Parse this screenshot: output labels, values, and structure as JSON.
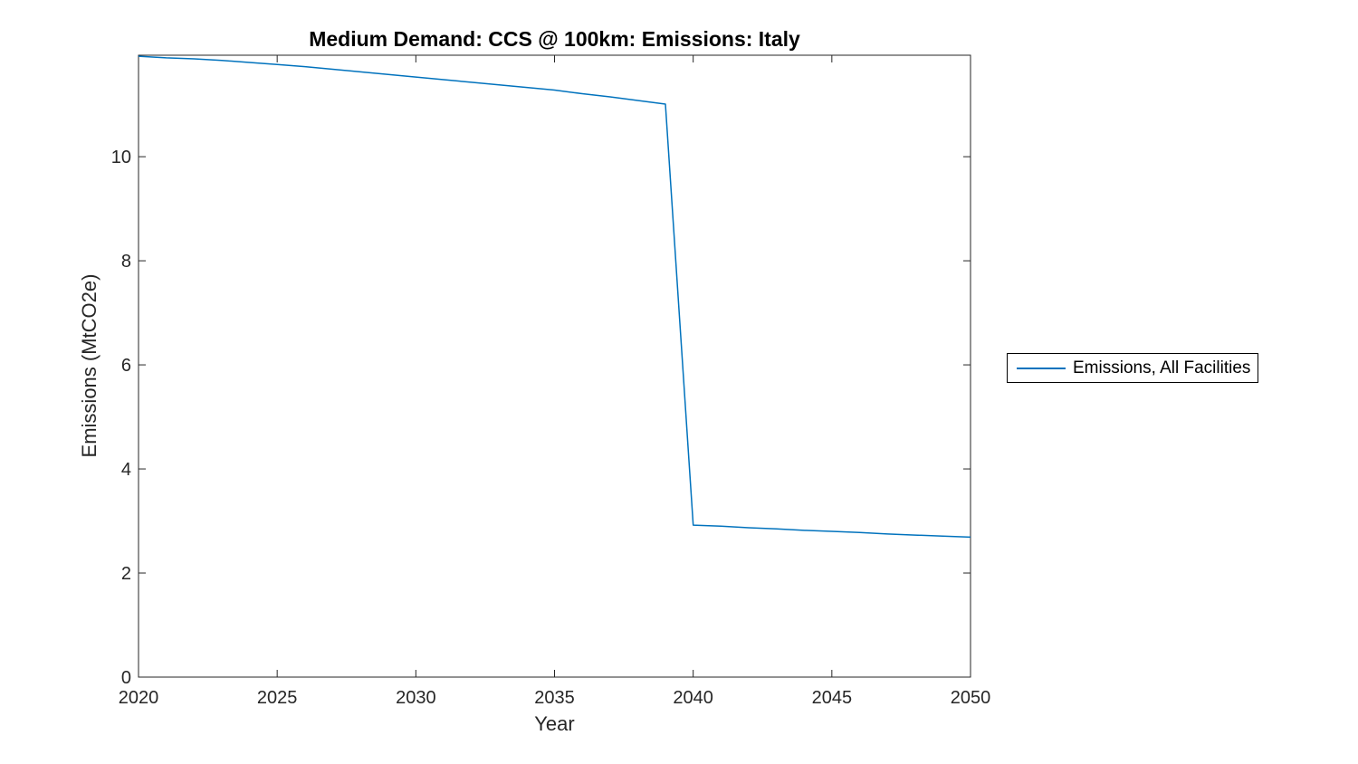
{
  "figure": {
    "background": "#ffffff",
    "axes_color": "#262626"
  },
  "chart_data": {
    "type": "line",
    "title": "Medium Demand: CCS @ 100km: Emissions: Italy",
    "xlabel": "Year",
    "ylabel": "Emissions (MtCO2e)",
    "xlim": [
      2020,
      2050
    ],
    "ylim": [
      0,
      11.95
    ],
    "xticks": [
      2020,
      2025,
      2030,
      2035,
      2040,
      2045,
      2050
    ],
    "yticks": [
      0,
      2,
      4,
      6,
      8,
      10
    ],
    "grid": false,
    "box": true,
    "legend": {
      "position": "right-outside",
      "entries": [
        {
          "label": "Emissions, All Facilities",
          "color": "#0072BD"
        }
      ]
    },
    "series": [
      {
        "name": "Emissions, All Facilities",
        "color": "#0072BD",
        "x": [
          2020,
          2021,
          2022,
          2023,
          2024,
          2025,
          2026,
          2027,
          2028,
          2029,
          2030,
          2031,
          2032,
          2033,
          2034,
          2035,
          2036,
          2037,
          2038,
          2039,
          2040,
          2041,
          2042,
          2043,
          2044,
          2045,
          2046,
          2047,
          2048,
          2049,
          2050
        ],
        "values": [
          11.93,
          11.9,
          11.88,
          11.85,
          11.81,
          11.77,
          11.73,
          11.68,
          11.63,
          11.58,
          11.53,
          11.48,
          11.43,
          11.38,
          11.33,
          11.28,
          11.21,
          11.15,
          11.08,
          11.01,
          2.92,
          2.9,
          2.87,
          2.85,
          2.82,
          2.8,
          2.78,
          2.75,
          2.73,
          2.71,
          2.69
        ]
      }
    ]
  }
}
